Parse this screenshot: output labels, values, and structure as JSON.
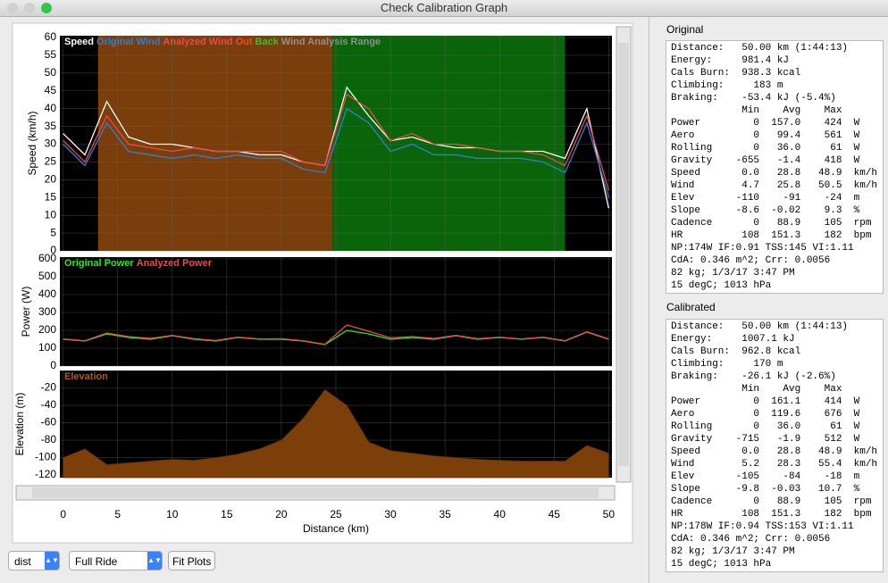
{
  "window": {
    "title": "Check Calibration Graph"
  },
  "chart_data": [
    {
      "type": "line",
      "ylabel": "Speed (km/h)",
      "xlim": [
        -0.3,
        50.3
      ],
      "ylim": [
        0,
        60.5
      ],
      "yticks": [
        0,
        5,
        10,
        15,
        20,
        25,
        30,
        35,
        40,
        45,
        50,
        55,
        60
      ],
      "grid": true,
      "background": "#000000",
      "x": [
        0,
        2,
        4,
        6,
        8,
        10,
        12,
        14,
        16,
        18,
        20,
        22,
        24,
        26,
        28,
        30,
        32,
        34,
        36,
        38,
        40,
        42,
        44,
        46,
        48,
        50
      ],
      "series": [
        {
          "name": "Speed",
          "color": "#ffffff",
          "values": [
            33,
            27,
            42,
            32,
            30,
            30,
            29,
            28,
            28,
            27,
            27,
            25,
            24,
            46,
            38,
            31,
            32,
            30,
            29,
            29,
            28,
            28,
            28,
            26,
            40,
            12
          ]
        },
        {
          "name": "Original Wind",
          "color": "#2f80d0",
          "values": [
            30,
            24,
            36,
            28,
            27,
            26,
            27,
            26,
            27,
            26,
            26,
            23,
            22,
            40,
            36,
            28,
            30,
            27,
            27,
            26,
            26,
            26,
            25,
            22,
            36,
            15
          ]
        },
        {
          "name": "Analyzed Wind",
          "color": "#f04848",
          "values": [
            31,
            25,
            38,
            30,
            29,
            28,
            29,
            28,
            28,
            28,
            28,
            25,
            24,
            44,
            40,
            31,
            33,
            30,
            30,
            29,
            28,
            28,
            27,
            24,
            38,
            17
          ]
        }
      ],
      "regions": [
        {
          "name": "Out",
          "start": 3.2,
          "end": 24.7,
          "color": "#7a3d0c",
          "legend_color": "#f04a2a"
        },
        {
          "name": "Back",
          "start": 24.7,
          "end": 46.0,
          "color": "#0a640a",
          "legend_color": "#22cc22"
        },
        {
          "name": "Wind Analysis Range",
          "legend_color": "#909090"
        }
      ]
    },
    {
      "type": "line",
      "ylabel": "Power (W)",
      "xlim": [
        -0.3,
        50.3
      ],
      "ylim": [
        0,
        610
      ],
      "yticks": [
        0,
        100,
        200,
        300,
        400,
        500,
        600
      ],
      "grid": true,
      "background": "#000000",
      "x": [
        0,
        2,
        4,
        6,
        8,
        10,
        12,
        14,
        16,
        18,
        20,
        22,
        24,
        26,
        28,
        30,
        32,
        34,
        36,
        38,
        40,
        42,
        44,
        46,
        48,
        50
      ],
      "series": [
        {
          "name": "Original Power",
          "color": "#22ee22",
          "values": [
            150,
            140,
            180,
            160,
            150,
            170,
            150,
            140,
            160,
            150,
            150,
            140,
            120,
            200,
            180,
            150,
            160,
            150,
            170,
            150,
            160,
            150,
            160,
            140,
            190,
            150
          ]
        },
        {
          "name": "Analyzed Power",
          "color": "#f04848",
          "values": [
            152,
            142,
            185,
            165,
            155,
            172,
            153,
            143,
            162,
            152,
            153,
            142,
            122,
            230,
            195,
            158,
            165,
            154,
            172,
            153,
            162,
            152,
            162,
            142,
            192,
            152
          ]
        }
      ]
    },
    {
      "type": "area",
      "ylabel": "Elevation (m)",
      "xlabel": "Distance (km)",
      "xlim": [
        -0.3,
        50.3
      ],
      "ylim": [
        -123,
        0
      ],
      "yticks": [
        -120,
        -100,
        -80,
        -60,
        -40,
        -20
      ],
      "xticks": [
        0,
        5,
        10,
        15,
        20,
        25,
        30,
        35,
        40,
        45,
        50
      ],
      "grid": true,
      "background": "#000000",
      "x": [
        0,
        2,
        4,
        6,
        8,
        10,
        12,
        14,
        16,
        18,
        20,
        22,
        24,
        26,
        28,
        30,
        32,
        34,
        36,
        38,
        40,
        42,
        44,
        46,
        48,
        50
      ],
      "series": [
        {
          "name": "Elevation",
          "color": "#7d3f0a",
          "values": [
            -100,
            -90,
            -108,
            -106,
            -104,
            -102,
            -103,
            -100,
            -96,
            -90,
            -80,
            -55,
            -22,
            -40,
            -82,
            -92,
            -95,
            -98,
            -100,
            -102,
            -103,
            -104,
            -104,
            -104,
            -86,
            -95
          ]
        }
      ]
    }
  ],
  "panels": [
    {
      "title": "Original",
      "lines": [
        "Distance:   50.00 km (1:44:13)",
        "Energy:     981.4 kJ",
        "Cals Burn:  938.3 kcal",
        "Climbing:     183 m",
        "Braking:    -53.4 kJ (-5.4%)",
        "            Min    Avg    Max",
        "Power         0  157.0    424  W",
        "Aero          0   99.4    561  W",
        "Rolling       0   36.0     61  W",
        "Gravity    -655   -1.4    418  W",
        "Speed       0.0   28.8   48.9  km/h",
        "Wind        4.7   25.8   50.5  km/h",
        "Elev       -110    -91    -24  m",
        "Slope      -8.6  -0.02    9.3  %",
        "Cadence       0   88.9    105  rpm",
        "HR          108  151.3    182  bpm",
        "NP:174W IF:0.91 TSS:145 VI:1.11",
        "CdA: 0.346 m^2; Crr: 0.0056",
        "82 kg; 1/3/17 3:47 PM",
        "15 degC; 1013 hPa"
      ]
    },
    {
      "title": "Calibrated",
      "lines": [
        "Distance:   50.00 km (1:44:13)",
        "Energy:     1007.1 kJ",
        "Cals Burn:  962.8 kcal",
        "Climbing:     170 m",
        "Braking:    -26.1 kJ (-2.6%)",
        "            Min    Avg    Max",
        "Power         0  161.1    414  W",
        "Aero          0  119.6    676  W",
        "Rolling       0   36.0     61  W",
        "Gravity    -715   -1.9    512  W",
        "Speed       0.0   28.8   48.9  km/h",
        "Wind        5.2   28.3   55.4  km/h",
        "Elev       -105    -84    -18  m",
        "Slope      -9.8  -0.03   10.7  %",
        "Cadence       0   88.9    105  rpm",
        "HR          108  151.3    182  bpm",
        "NP:178W IF:0.94 TSS:153 VI:1.11",
        "CdA: 0.346 m^2; Crr: 0.0056",
        "82 kg; 1/3/17 3:47 PM",
        "15 degC; 1013 hPa"
      ]
    }
  ],
  "controls": {
    "axis_select": "dist",
    "range_select": "Full Ride",
    "fit_button": "Fit Plots"
  }
}
